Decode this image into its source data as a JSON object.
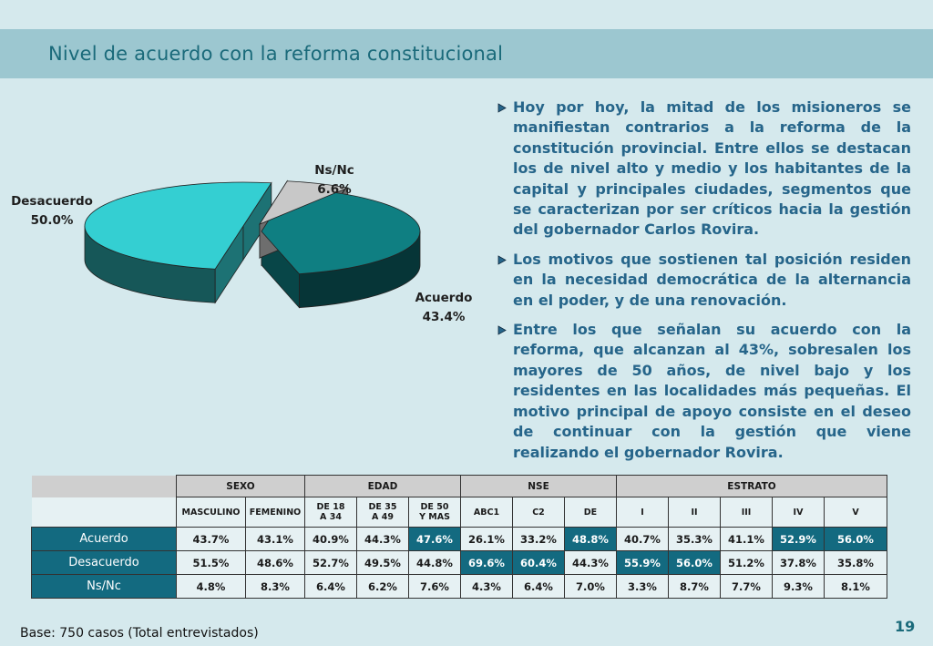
{
  "title": "Nivel de acuerdo con la reforma constitucional",
  "chart_data": {
    "type": "pie",
    "slices": [
      {
        "label": "Acuerdo",
        "value": 43.4,
        "value_label": "43.4%",
        "color": "#0f7f82"
      },
      {
        "label": "Desacuerdo",
        "value": 50.0,
        "value_label": "50.0%",
        "color": "#34cfd2"
      },
      {
        "label": "Ns/Nc",
        "value": 6.6,
        "value_label": "6.6%",
        "color": "#c8c8c8"
      }
    ]
  },
  "bullets": [
    "Hoy por hoy, la mitad de los misioneros se manifiestan contrarios a la reforma de la constitución provincial. Entre ellos se destacan los de nivel alto y medio y los habitantes de la capital y principales ciudades, segmentos que se caracterizan por ser críticos hacia la gestión del gobernador Carlos Rovira.",
    "Los motivos que sostienen tal posición residen en la necesidad democrática de la alternancia en el poder, y de una renovación.",
    "Entre los que señalan su acuerdo con la reforma, que alcanzan al 43%, sobresalen los mayores de 50 años, de nivel bajo y los residentes en las localidades más pequeñas. El motivo principal de apoyo consiste en el deseo de continuar con la gestión que viene realizando el gobernador Rovira."
  ],
  "table": {
    "groups": [
      {
        "label": "SEXO",
        "span": 2
      },
      {
        "label": "EDAD",
        "span": 3
      },
      {
        "label": "NSE",
        "span": 3
      },
      {
        "label": "ESTRATO",
        "span": 5
      }
    ],
    "subheaders": [
      "MASCULINO",
      "FEMENINO",
      "DE 18\nA 34",
      "DE 35\nA 49",
      "DE 50\nY MAS",
      "ABC1",
      "C2",
      "DE",
      "I",
      "II",
      "III",
      "IV",
      "V"
    ],
    "rows": [
      {
        "label": "Acuerdo",
        "values": [
          "43.7%",
          "43.1%",
          "40.9%",
          "44.3%",
          "47.6%",
          "26.1%",
          "33.2%",
          "48.8%",
          "40.7%",
          "35.3%",
          "41.1%",
          "52.9%",
          "56.0%"
        ],
        "highlight": [
          4,
          7,
          11,
          12
        ]
      },
      {
        "label": "Desacuerdo",
        "values": [
          "51.5%",
          "48.6%",
          "52.7%",
          "49.5%",
          "44.8%",
          "69.6%",
          "60.4%",
          "44.3%",
          "55.9%",
          "56.0%",
          "51.2%",
          "37.8%",
          "35.8%"
        ],
        "highlight": [
          5,
          6,
          8,
          9
        ]
      },
      {
        "label": "Ns/Nc",
        "values": [
          "4.8%",
          "8.3%",
          "6.4%",
          "6.2%",
          "7.6%",
          "4.3%",
          "6.4%",
          "7.0%",
          "3.3%",
          "8.7%",
          "7.7%",
          "9.3%",
          "8.1%"
        ],
        "highlight": []
      }
    ]
  },
  "footer": "Base: 750 casos (Total entrevistados)",
  "page_number": "19"
}
